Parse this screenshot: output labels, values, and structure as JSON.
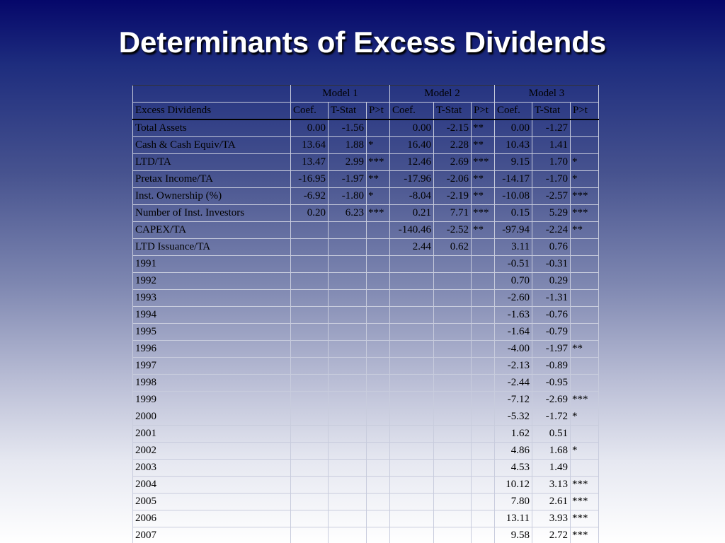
{
  "title": "Determinants of Excess Dividends",
  "table": {
    "models": [
      "Model 1",
      "Model 2",
      "Model 3"
    ],
    "dep_var": "Excess Dividends",
    "col_headers": [
      "Coef.",
      "T-Stat",
      "P>t"
    ],
    "rows": [
      {
        "label": "Total Assets",
        "cells": [
          "0.00",
          "-1.56",
          "",
          "0.00",
          "-2.15",
          "**",
          "0.00",
          "-1.27",
          ""
        ]
      },
      {
        "label": "Cash & Cash Equiv/TA",
        "cells": [
          "13.64",
          "1.88",
          "*",
          "16.40",
          "2.28",
          "**",
          "10.43",
          "1.41",
          ""
        ]
      },
      {
        "label": "LTD/TA",
        "cells": [
          "13.47",
          "2.99",
          "***",
          "12.46",
          "2.69",
          "***",
          "9.15",
          "1.70",
          "*"
        ]
      },
      {
        "label": "Pretax Income/TA",
        "cells": [
          "-16.95",
          "-1.97",
          "**",
          "-17.96",
          "-2.06",
          "**",
          "-14.17",
          "-1.70",
          "*"
        ]
      },
      {
        "label": "Inst. Ownership (%)",
        "cells": [
          "-6.92",
          "-1.80",
          "*",
          "-8.04",
          "-2.19",
          "**",
          "-10.08",
          "-2.57",
          "***"
        ]
      },
      {
        "label": "Number of Inst. Investors",
        "cells": [
          "0.20",
          "6.23",
          "***",
          "0.21",
          "7.71",
          "***",
          "0.15",
          "5.29",
          "***"
        ]
      },
      {
        "label": "CAPEX/TA",
        "cells": [
          "",
          "",
          "",
          "-140.46",
          "-2.52",
          "**",
          "-97.94",
          "-2.24",
          "**"
        ]
      },
      {
        "label": "LTD Issuance/TA",
        "cells": [
          "",
          "",
          "",
          "2.44",
          "0.62",
          "",
          "3.11",
          "0.76",
          ""
        ]
      },
      {
        "label": "1991",
        "cells": [
          "",
          "",
          "",
          "",
          "",
          "",
          "-0.51",
          "-0.31",
          ""
        ]
      },
      {
        "label": "1992",
        "cells": [
          "",
          "",
          "",
          "",
          "",
          "",
          "0.70",
          "0.29",
          ""
        ]
      },
      {
        "label": "1993",
        "cells": [
          "",
          "",
          "",
          "",
          "",
          "",
          "-2.60",
          "-1.31",
          ""
        ]
      },
      {
        "label": "1994",
        "cells": [
          "",
          "",
          "",
          "",
          "",
          "",
          "-1.63",
          "-0.76",
          ""
        ]
      },
      {
        "label": "1995",
        "cells": [
          "",
          "",
          "",
          "",
          "",
          "",
          "-1.64",
          "-0.79",
          ""
        ]
      },
      {
        "label": "1996",
        "cells": [
          "",
          "",
          "",
          "",
          "",
          "",
          "-4.00",
          "-1.97",
          "**"
        ]
      },
      {
        "label": "1997",
        "cells": [
          "",
          "",
          "",
          "",
          "",
          "",
          "-2.13",
          "-0.89",
          ""
        ]
      },
      {
        "label": "1998",
        "cells": [
          "",
          "",
          "",
          "",
          "",
          "",
          "-2.44",
          "-0.95",
          ""
        ]
      },
      {
        "label": "1999",
        "cells": [
          "",
          "",
          "",
          "",
          "",
          "",
          "-7.12",
          "-2.69",
          "***"
        ]
      },
      {
        "label": "2000",
        "cells": [
          "",
          "",
          "",
          "",
          "",
          "",
          "-5.32",
          "-1.72",
          "*"
        ]
      },
      {
        "label": "2001",
        "cells": [
          "",
          "",
          "",
          "",
          "",
          "",
          "1.62",
          "0.51",
          ""
        ]
      },
      {
        "label": "2002",
        "cells": [
          "",
          "",
          "",
          "",
          "",
          "",
          "4.86",
          "1.68",
          "*"
        ]
      },
      {
        "label": "2003",
        "cells": [
          "",
          "",
          "",
          "",
          "",
          "",
          "4.53",
          "1.49",
          ""
        ]
      },
      {
        "label": "2004",
        "cells": [
          "",
          "",
          "",
          "",
          "",
          "",
          "10.12",
          "3.13",
          "***"
        ]
      },
      {
        "label": "2005",
        "cells": [
          "",
          "",
          "",
          "",
          "",
          "",
          "7.80",
          "2.61",
          "***"
        ]
      },
      {
        "label": "2006",
        "cells": [
          "",
          "",
          "",
          "",
          "",
          "",
          "13.11",
          "3.93",
          "***"
        ]
      },
      {
        "label": "2007",
        "cells": [
          "",
          "",
          "",
          "",
          "",
          "",
          "9.58",
          "2.72",
          "***"
        ]
      }
    ]
  }
}
